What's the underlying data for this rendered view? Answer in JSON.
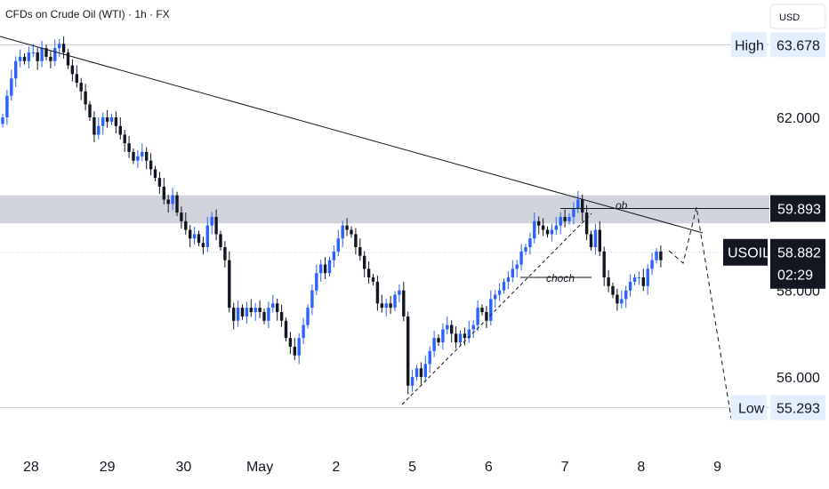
{
  "header": {
    "title": "CFDs on Crude Oil (WTI) · 1h · FX"
  },
  "currency_button": "USD",
  "chart_data": {
    "type": "candlestick",
    "title": "CFDs on Crude Oil (WTI) · 1h · FX",
    "currency": "USD",
    "ylim": [
      54.6,
      64.4
    ],
    "y_ticks": [
      {
        "value": 62.0,
        "label": "62.000"
      },
      {
        "value": 58.0,
        "label": "58.000"
      },
      {
        "value": 56.0,
        "label": "56.000"
      }
    ],
    "x_ticks": [
      {
        "label": "28",
        "index": 6.5
      },
      {
        "label": "29",
        "index": 24
      },
      {
        "label": "30",
        "index": 41.5
      },
      {
        "label": "May",
        "index": 59
      },
      {
        "label": "2",
        "index": 76.5
      },
      {
        "label": "5",
        "index": 94
      },
      {
        "label": "6",
        "index": 111.5
      },
      {
        "label": "7",
        "index": 129
      },
      {
        "label": "8",
        "index": 146.5
      },
      {
        "label": "9",
        "index": 164
      }
    ],
    "closes": [
      62.0,
      62.5,
      62.9,
      63.3,
      63.4,
      63.3,
      63.5,
      63.5,
      63.3,
      63.6,
      63.4,
      63.3,
      63.6,
      63.7,
      63.5,
      63.2,
      63.0,
      62.8,
      62.6,
      62.3,
      62.0,
      61.6,
      61.8,
      62.0,
      61.9,
      62.0,
      61.8,
      61.6,
      61.4,
      61.2,
      61.0,
      61.1,
      61.2,
      61.0,
      60.8,
      60.6,
      60.4,
      60.1,
      60.0,
      60.2,
      59.8,
      59.6,
      59.4,
      59.2,
      59.3,
      59.1,
      59.0,
      59.5,
      59.7,
      59.3,
      59.0,
      58.7,
      57.6,
      57.3,
      57.6,
      57.4,
      57.6,
      57.5,
      57.6,
      57.5,
      57.3,
      57.6,
      57.7,
      57.5,
      57.3,
      56.9,
      56.7,
      56.5,
      56.9,
      57.2,
      57.6,
      58.0,
      58.4,
      58.6,
      58.4,
      58.7,
      58.9,
      59.2,
      59.5,
      59.4,
      59.3,
      59.0,
      58.8,
      58.5,
      58.3,
      58.2,
      57.7,
      57.6,
      57.7,
      57.6,
      57.9,
      58.0,
      57.4,
      55.8,
      56.0,
      56.2,
      56.0,
      56.3,
      56.6,
      56.9,
      56.8,
      57.1,
      57.2,
      57.0,
      56.8,
      57.0,
      56.9,
      57.1,
      57.2,
      57.6,
      57.5,
      57.3,
      57.8,
      57.9,
      58.0,
      58.2,
      58.3,
      58.5,
      58.6,
      58.9,
      59.0,
      59.2,
      59.6,
      59.5,
      59.4,
      59.3,
      59.4,
      59.5,
      59.7,
      59.6,
      59.7,
      59.9,
      60.1,
      59.8,
      59.3,
      59.0,
      59.4,
      58.9,
      58.3,
      58.1,
      57.9,
      57.7,
      57.8,
      58.0,
      58.2,
      58.3,
      58.3,
      58.1,
      58.5,
      58.7,
      58.9,
      58.7
    ],
    "high": {
      "label": "High",
      "value": "63.678",
      "y": 63.678
    },
    "low": {
      "label": "Low",
      "value": "55.293",
      "y": 55.293
    },
    "current": {
      "symbol": "USOIL",
      "price": "58.882",
      "y": 58.882,
      "countdown": "02:29"
    },
    "ob_level": {
      "value": "59.893",
      "y": 59.893
    },
    "zone": {
      "from": 59.55,
      "to": 60.2
    },
    "annotations": {
      "ob": "ob",
      "choch": "choch"
    },
    "colors": {
      "up": "#2962ff",
      "down": "#131722",
      "zone": "#d1d4dc",
      "label_bg": "#e3effd",
      "dark_label": "#131722"
    }
  }
}
